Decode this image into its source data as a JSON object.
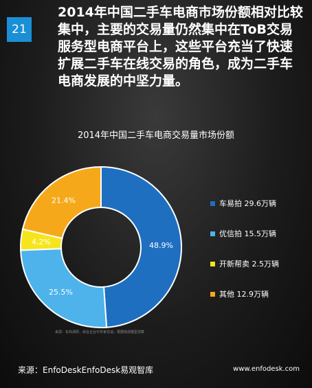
{
  "page_number": "21",
  "headline": "2014年中国二手车电商市场份额相对比较集中，主要的交易量仍然集中在ToB交易服务型电商平台上，这些平台充当了快速扩展二手车在线交易的角色，成为二手车电商发展的中坚力量。",
  "chart_data": {
    "type": "pie",
    "variant": "donut",
    "title": "2014年中国二手车电商交易量市场份额",
    "categories": [
      "车易拍",
      "优信拍",
      "开新帮卖",
      "其他"
    ],
    "values": [
      48.9,
      25.5,
      4.2,
      21.4
    ],
    "value_labels": [
      "48.9%",
      "25.5%",
      "4.2%",
      "21.4%"
    ],
    "colors": [
      "#1f6fc1",
      "#4db3ea",
      "#f7e51c",
      "#f6a81b"
    ],
    "legend": [
      {
        "label": "车易拍 29.6万辆",
        "color": "#1f6fc1"
      },
      {
        "label": "优信拍 15.5万辆",
        "color": "#4db3ea"
      },
      {
        "label": "开新帮卖 2.5万辆",
        "color": "#f7e51c"
      },
      {
        "label": "其他 12.9万辆",
        "color": "#f6a81b"
      }
    ],
    "legend_position": "right"
  },
  "note": "来源：车商调研，综合企业与专家访谈，根据易观模型测算",
  "source": "来源：EnfoDeskEnfoDesk易观智库",
  "website": "www.enfodesk.com"
}
